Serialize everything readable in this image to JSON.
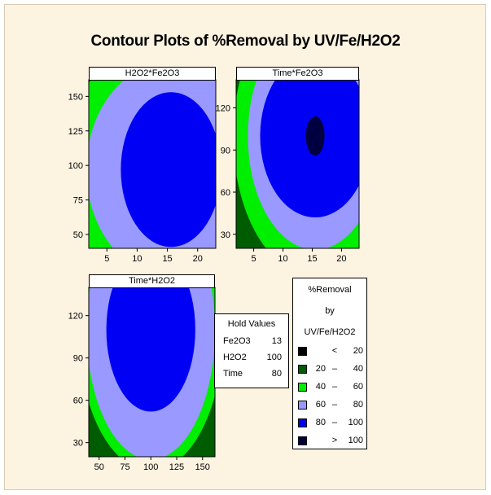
{
  "chart_data": {
    "title": "Contour Plots of %Removal by UV/Fe/H2O2",
    "colors": {
      "lt20": "#000000",
      "20-40": "#005c00",
      "40-60": "#00ee00",
      "60-80": "#9999ff",
      "80-100": "#0000f5",
      "gt100": "#000040"
    },
    "panels": [
      {
        "title": "H2O2*Fe2O3",
        "type": "contour",
        "xlim": [
          2,
          23
        ],
        "ylim": [
          40,
          162
        ],
        "xticks": [
          5,
          10,
          15,
          20
        ],
        "yticks": [
          50,
          75,
          100,
          125,
          150
        ],
        "center": [
          15.6,
          97
        ],
        "levels": [
          {
            "band": "20-40",
            "rx": 23,
            "ry": 125
          },
          {
            "band": "40-60",
            "rx": 18,
            "ry": 96
          },
          {
            "band": "60-80",
            "rx": 14,
            "ry": 78
          },
          {
            "band": "80-100",
            "rx": 8.3,
            "ry": 56
          }
        ],
        "corner": {
          "band": "lt20",
          "x": 2,
          "y": 162
        }
      },
      {
        "title": "Time*Fe2O3",
        "type": "contour",
        "xlim": [
          2,
          23
        ],
        "ylim": [
          20,
          140
        ],
        "xticks": [
          5,
          10,
          15,
          20
        ],
        "yticks": [
          30,
          60,
          90,
          120
        ],
        "center": [
          15.5,
          100
        ],
        "levels": [
          {
            "band": "20-40",
            "rx": 17,
            "ry": 160
          },
          {
            "band": "40-60",
            "rx": 14,
            "ry": 100
          },
          {
            "band": "60-80",
            "rx": 11.5,
            "ry": 81
          },
          {
            "band": "80-100",
            "rx": 9.4,
            "ry": 58
          },
          {
            "band": "gt100",
            "rx": 1.6,
            "ry": 14
          }
        ]
      },
      {
        "title": "Time*H2O2",
        "type": "contour",
        "xlim": [
          40,
          162
        ],
        "ylim": [
          20,
          140
        ],
        "xticks": [
          50,
          75,
          100,
          125,
          150
        ],
        "yticks": [
          30,
          60,
          90,
          120
        ],
        "center": [
          100,
          110
        ],
        "levels": [
          {
            "band": "20-40",
            "rx": 210,
            "ry": 200
          },
          {
            "band": "40-60",
            "rx": 70,
            "ry": 100
          },
          {
            "band": "60-80",
            "rx": 62,
            "ry": 92
          },
          {
            "band": "80-100",
            "rx": 43,
            "ry": 58
          }
        ]
      }
    ],
    "hold_values": {
      "title": "Hold Values",
      "rows": [
        {
          "name": "Fe2O3",
          "value": "13"
        },
        {
          "name": "H2O2",
          "value": "100"
        },
        {
          "name": "Time",
          "value": "80"
        }
      ]
    },
    "legend": {
      "title_lines": [
        "%Removal",
        "by",
        "UV/Fe/H2O2"
      ],
      "entries": [
        {
          "band": "lt20",
          "lo": "",
          "op": "<",
          "hi": "20"
        },
        {
          "band": "20-40",
          "lo": "20",
          "op": "–",
          "hi": "40"
        },
        {
          "band": "40-60",
          "lo": "40",
          "op": "–",
          "hi": "60"
        },
        {
          "band": "60-80",
          "lo": "60",
          "op": "–",
          "hi": "80"
        },
        {
          "band": "80-100",
          "lo": "80",
          "op": "–",
          "hi": "100"
        },
        {
          "band": "gt100",
          "lo": "",
          "op": ">",
          "hi": "100"
        }
      ]
    }
  }
}
